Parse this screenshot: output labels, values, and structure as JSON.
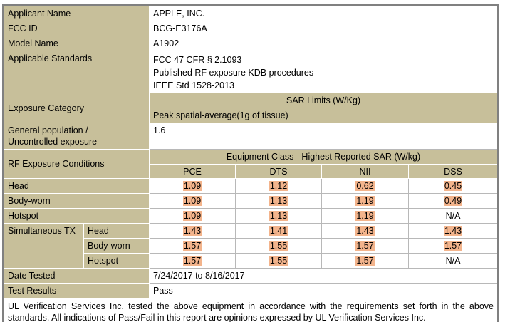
{
  "applicant": {
    "label": "Applicant Name",
    "value": "APPLE, INC."
  },
  "fcc_id": {
    "label": "FCC ID",
    "value": "BCG-E3176A"
  },
  "model": {
    "label": "Model Name",
    "value": "A1902"
  },
  "standards": {
    "label": "Applicable Standards",
    "values": [
      "FCC 47 CFR § 2.1093",
      "Published RF exposure KDB procedures",
      "IEEE Std 1528-2013"
    ]
  },
  "exposure": {
    "label": "Exposure Category",
    "sar_limits_header": "SAR Limits (W/Kg)",
    "peak_label": "Peak spatial-average(1g of tissue)",
    "population_label": "General population / Uncontrolled exposure",
    "population_line1": "General population /",
    "population_line2": "Uncontrolled exposure",
    "population_value": "1.6"
  },
  "rf": {
    "label": "RF Exposure Conditions",
    "class_header": "Equipment Class - Highest Reported SAR (W/kg)",
    "columns": [
      "PCE",
      "DTS",
      "NII",
      "DSS"
    ],
    "simultaneous_label": "Simultaneous TX",
    "rows": [
      {
        "label": "Head",
        "values": [
          "1.09",
          "1.12",
          "0.62",
          "0.45"
        ],
        "highlight": [
          true,
          true,
          true,
          true
        ]
      },
      {
        "label": "Body-worn",
        "values": [
          "1.09",
          "1.13",
          "1.19",
          "0.49"
        ],
        "highlight": [
          true,
          true,
          true,
          true
        ]
      },
      {
        "label": "Hotspot",
        "values": [
          "1.09",
          "1.13",
          "1.19",
          "N/A"
        ],
        "highlight": [
          true,
          true,
          true,
          false
        ]
      }
    ],
    "sim_rows": [
      {
        "label": "Head",
        "values": [
          "1.43",
          "1.41",
          "1.43",
          "1.43"
        ],
        "highlight": [
          true,
          true,
          true,
          true
        ]
      },
      {
        "label": "Body-worn",
        "values": [
          "1.57",
          "1.55",
          "1.57",
          "1.57"
        ],
        "highlight": [
          true,
          true,
          true,
          true
        ]
      },
      {
        "label": "Hotspot",
        "values": [
          "1.57",
          "1.55",
          "1.57",
          "N/A"
        ],
        "highlight": [
          true,
          true,
          true,
          false
        ]
      }
    ]
  },
  "date_tested": {
    "label": "Date Tested",
    "value": "7/24/2017 to 8/16/2017"
  },
  "test_results": {
    "label": "Test Results",
    "value": "Pass"
  },
  "footer_note": "UL Verification Services Inc. tested the above equipment in accordance with the requirements set forth in the above standards. All indications of Pass/Fail in this report are opinions expressed by UL Verification Services Inc.",
  "colors": {
    "label_bg": "#c7bf9a",
    "highlight": "#f3b48c",
    "border": "#808080"
  }
}
